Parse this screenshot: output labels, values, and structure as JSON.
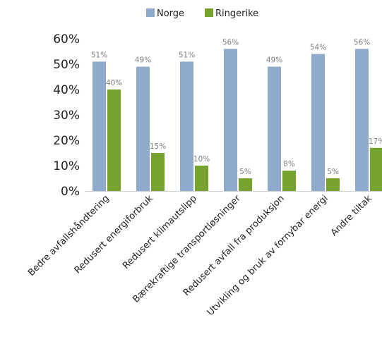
{
  "chart_data": {
    "type": "bar",
    "title": "",
    "xlabel": "",
    "ylabel": "",
    "ylim": [
      0,
      60
    ],
    "yticks": [
      "0%",
      "10%",
      "20%",
      "30%",
      "40%",
      "50%",
      "60%"
    ],
    "grid": false,
    "legend_position": "top",
    "categories": [
      "Bedre avfallshåndtering",
      "Redusert energiforbruk",
      "Redusert klimautslipp",
      "Bærekraftige transportløsninger",
      "Redusert avfall fra produksjon",
      "Utvikling og bruk av fornybar energi",
      "Andre tiltak"
    ],
    "series": [
      {
        "name": "Norge",
        "color": "#8faacc",
        "values": [
          51,
          49,
          51,
          56,
          49,
          54,
          56
        ],
        "labels": [
          "51%",
          "49%",
          "51%",
          "56%",
          "49%",
          "54%",
          "56%"
        ]
      },
      {
        "name": "Ringerike",
        "color": "#76a22f",
        "values": [
          40,
          15,
          10,
          5,
          8,
          5,
          17
        ],
        "labels": [
          "40%",
          "15%",
          "10%",
          "5%",
          "8%",
          "5%",
          "17%"
        ]
      }
    ]
  }
}
